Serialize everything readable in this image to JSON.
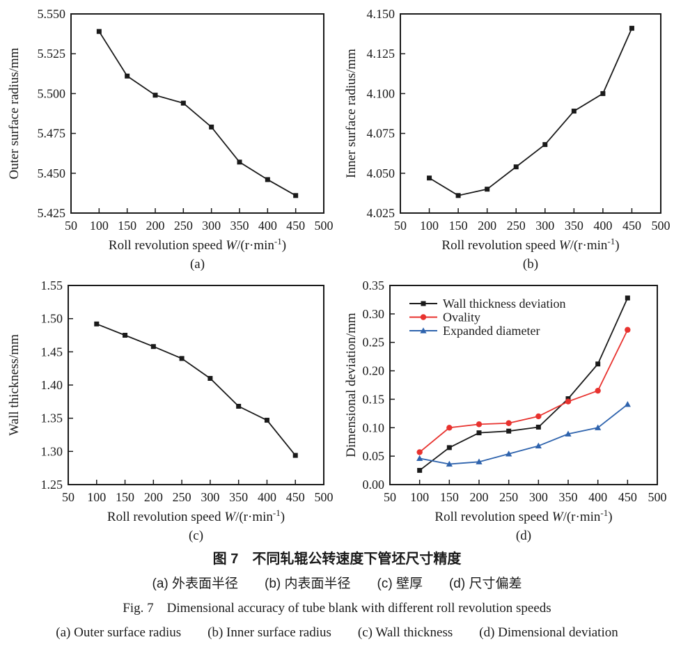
{
  "figure": {
    "caption_zh_title": "图 7　不同轧辊公转速度下管坯尺寸精度",
    "caption_zh_sub": "(a) 外表面半径　　(b) 内表面半径　　(c) 壁厚　　(d) 尺寸偏差",
    "caption_en_title": "Fig. 7　Dimensional accuracy of tube blank with different roll revolution speeds",
    "caption_en_sub": "(a)  Outer surface radius　　(b)  Inner surface radius　　(c)  Wall thickness　　(d)  Dimensional deviation"
  },
  "axis": {
    "xlabel": "Roll revolution speed W/(r·min⁻¹)",
    "xlabel_runs": [
      {
        "text": "Roll revolution speed ",
        "style": "normal"
      },
      {
        "text": "W",
        "style": "italic"
      },
      {
        "text": "/(r·min",
        "style": "normal"
      },
      {
        "text": "-1",
        "style": "super"
      },
      {
        "text": ")",
        "style": "normal"
      }
    ],
    "ink_color": "#1a1a1a"
  },
  "chart_data": [
    {
      "id": "a",
      "type": "line",
      "panel_label": "(a)",
      "xlabel": "Roll revolution speed W/(r·min⁻¹)",
      "ylabel": "Outer surface radius/mm",
      "x": [
        100,
        150,
        200,
        250,
        300,
        350,
        400,
        450
      ],
      "xlim": [
        50,
        500
      ],
      "xticks": [
        50,
        100,
        150,
        200,
        250,
        300,
        350,
        400,
        450,
        500
      ],
      "xtick_labels": [
        "50",
        "100",
        "150",
        "200",
        "250",
        "300",
        "350",
        "400",
        "450",
        "500"
      ],
      "ylim": [
        5.425,
        5.55
      ],
      "yticks": [
        5.425,
        5.45,
        5.475,
        5.5,
        5.525,
        5.55
      ],
      "ytick_labels": [
        "5.425",
        "5.450",
        "5.475",
        "5.500",
        "5.525",
        "5.550"
      ],
      "grid": false,
      "legend": {
        "show": false
      },
      "series": [
        {
          "name": "Outer surface radius",
          "color": "#1a1a1a",
          "marker": "square",
          "values": [
            5.539,
            5.511,
            5.499,
            5.494,
            5.479,
            5.457,
            5.446,
            5.436
          ]
        }
      ]
    },
    {
      "id": "b",
      "type": "line",
      "panel_label": "(b)",
      "xlabel": "Roll revolution speed W/(r·min⁻¹)",
      "ylabel": "Inner surface radius/mm",
      "x": [
        100,
        150,
        200,
        250,
        300,
        350,
        400,
        450
      ],
      "xlim": [
        50,
        500
      ],
      "xticks": [
        50,
        100,
        150,
        200,
        250,
        300,
        350,
        400,
        450,
        500
      ],
      "xtick_labels": [
        "50",
        "100",
        "150",
        "200",
        "250",
        "300",
        "350",
        "400",
        "450",
        "500"
      ],
      "ylim": [
        4.025,
        4.15
      ],
      "yticks": [
        4.025,
        4.05,
        4.075,
        4.1,
        4.125,
        4.15
      ],
      "ytick_labels": [
        "4.025",
        "4.050",
        "4.075",
        "4.100",
        "4.125",
        "4.150"
      ],
      "grid": false,
      "legend": {
        "show": false
      },
      "series": [
        {
          "name": "Inner surface radius",
          "color": "#1a1a1a",
          "marker": "square",
          "values": [
            4.047,
            4.036,
            4.04,
            4.054,
            4.068,
            4.089,
            4.1,
            4.141
          ]
        }
      ]
    },
    {
      "id": "c",
      "type": "line",
      "panel_label": "(c)",
      "xlabel": "Roll revolution speed W/(r·min⁻¹)",
      "ylabel": "Wall thickness/mm",
      "x": [
        100,
        150,
        200,
        250,
        300,
        350,
        400,
        450
      ],
      "xlim": [
        50,
        500
      ],
      "xticks": [
        50,
        100,
        150,
        200,
        250,
        300,
        350,
        400,
        450,
        500
      ],
      "xtick_labels": [
        "50",
        "100",
        "150",
        "200",
        "250",
        "300",
        "350",
        "400",
        "450",
        "500"
      ],
      "ylim": [
        1.25,
        1.55
      ],
      "yticks": [
        1.25,
        1.3,
        1.35,
        1.4,
        1.45,
        1.5,
        1.55
      ],
      "ytick_labels": [
        "1.25",
        "1.30",
        "1.35",
        "1.40",
        "1.45",
        "1.50",
        "1.55"
      ],
      "grid": false,
      "legend": {
        "show": false
      },
      "series": [
        {
          "name": "Wall thickness",
          "color": "#1a1a1a",
          "marker": "square",
          "values": [
            1.492,
            1.475,
            1.458,
            1.44,
            1.41,
            1.368,
            1.347,
            1.294
          ]
        }
      ]
    },
    {
      "id": "d",
      "type": "line",
      "panel_label": "(d)",
      "xlabel": "Roll revolution speed W/(r·min⁻¹)",
      "ylabel": "Dimensional deviation/mm",
      "x": [
        100,
        150,
        200,
        250,
        300,
        350,
        400,
        450
      ],
      "xlim": [
        50,
        500
      ],
      "xticks": [
        50,
        100,
        150,
        200,
        250,
        300,
        350,
        400,
        450,
        500
      ],
      "xtick_labels": [
        "50",
        "100",
        "150",
        "200",
        "250",
        "300",
        "350",
        "400",
        "450",
        "500"
      ],
      "ylim": [
        0,
        0.35
      ],
      "yticks": [
        0,
        0.05,
        0.1,
        0.15,
        0.2,
        0.25,
        0.3,
        0.35
      ],
      "ytick_labels": [
        "0.00",
        "0.05",
        "0.10",
        "0.15",
        "0.20",
        "0.25",
        "0.30",
        "0.35"
      ],
      "grid": false,
      "legend": {
        "show": true,
        "position": "top-left",
        "entries": [
          "Wall thickness deviation",
          "Ovality",
          "Expanded diameter"
        ]
      },
      "series": [
        {
          "name": "Wall thickness deviation",
          "color": "#1a1a1a",
          "marker": "square",
          "values": [
            0.025,
            0.065,
            0.091,
            0.094,
            0.101,
            0.151,
            0.212,
            0.328
          ]
        },
        {
          "name": "Ovality",
          "color": "#e8322e",
          "marker": "circle",
          "values": [
            0.057,
            0.1,
            0.106,
            0.108,
            0.12,
            0.146,
            0.165,
            0.272
          ]
        },
        {
          "name": "Expanded diameter",
          "color": "#2e63ad",
          "marker": "triangle",
          "values": [
            0.046,
            0.036,
            0.04,
            0.054,
            0.068,
            0.089,
            0.1,
            0.141
          ]
        }
      ]
    }
  ]
}
